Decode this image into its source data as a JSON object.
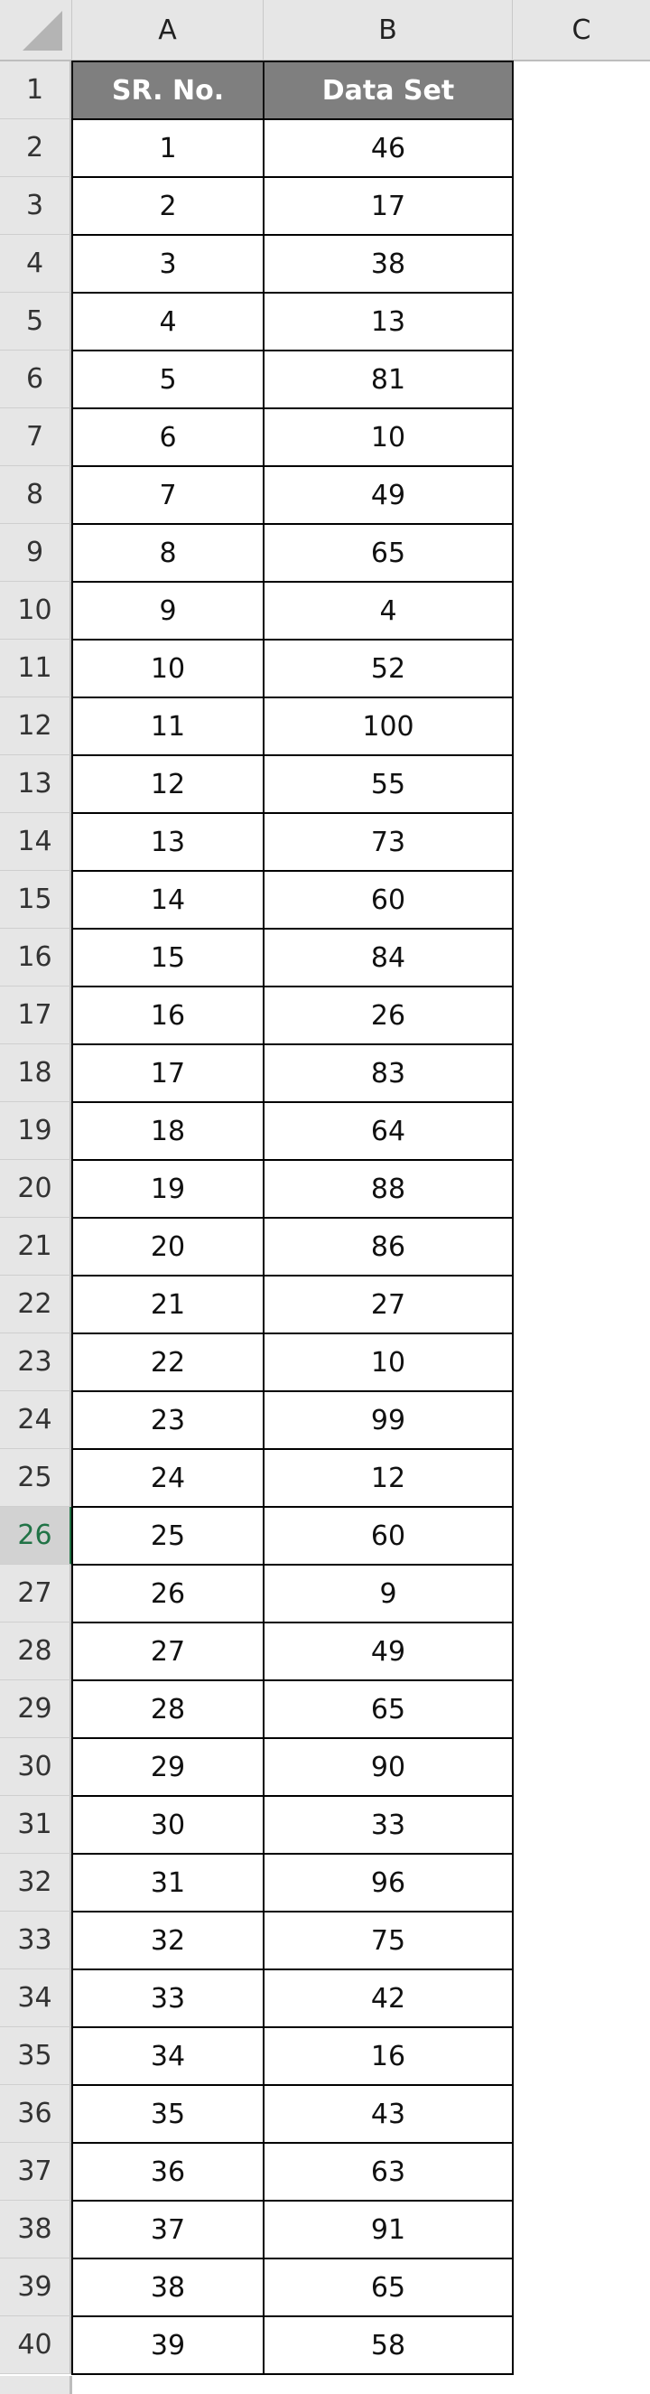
{
  "columns": [
    "A",
    "B",
    "C"
  ],
  "header": {
    "col_a": "SR. No.",
    "col_b": "Data Set"
  },
  "selected_row": 26,
  "accent_color": "#217346",
  "header_fill_color": "#7f7f7f",
  "rows": [
    [
      "1",
      "46"
    ],
    [
      "2",
      "17"
    ],
    [
      "3",
      "38"
    ],
    [
      "4",
      "13"
    ],
    [
      "5",
      "81"
    ],
    [
      "6",
      "10"
    ],
    [
      "7",
      "49"
    ],
    [
      "8",
      "65"
    ],
    [
      "9",
      "4"
    ],
    [
      "10",
      "52"
    ],
    [
      "11",
      "100"
    ],
    [
      "12",
      "55"
    ],
    [
      "13",
      "73"
    ],
    [
      "14",
      "60"
    ],
    [
      "15",
      "84"
    ],
    [
      "16",
      "26"
    ],
    [
      "17",
      "83"
    ],
    [
      "18",
      "64"
    ],
    [
      "19",
      "88"
    ],
    [
      "20",
      "86"
    ],
    [
      "21",
      "27"
    ],
    [
      "22",
      "10"
    ],
    [
      "23",
      "99"
    ],
    [
      "24",
      "12"
    ],
    [
      "25",
      "60"
    ],
    [
      "26",
      "9"
    ],
    [
      "27",
      "49"
    ],
    [
      "28",
      "65"
    ],
    [
      "29",
      "90"
    ],
    [
      "30",
      "33"
    ],
    [
      "31",
      "96"
    ],
    [
      "32",
      "75"
    ],
    [
      "33",
      "42"
    ],
    [
      "34",
      "16"
    ],
    [
      "35",
      "43"
    ],
    [
      "36",
      "63"
    ],
    [
      "37",
      "91"
    ],
    [
      "38",
      "65"
    ],
    [
      "39",
      "58"
    ]
  ]
}
